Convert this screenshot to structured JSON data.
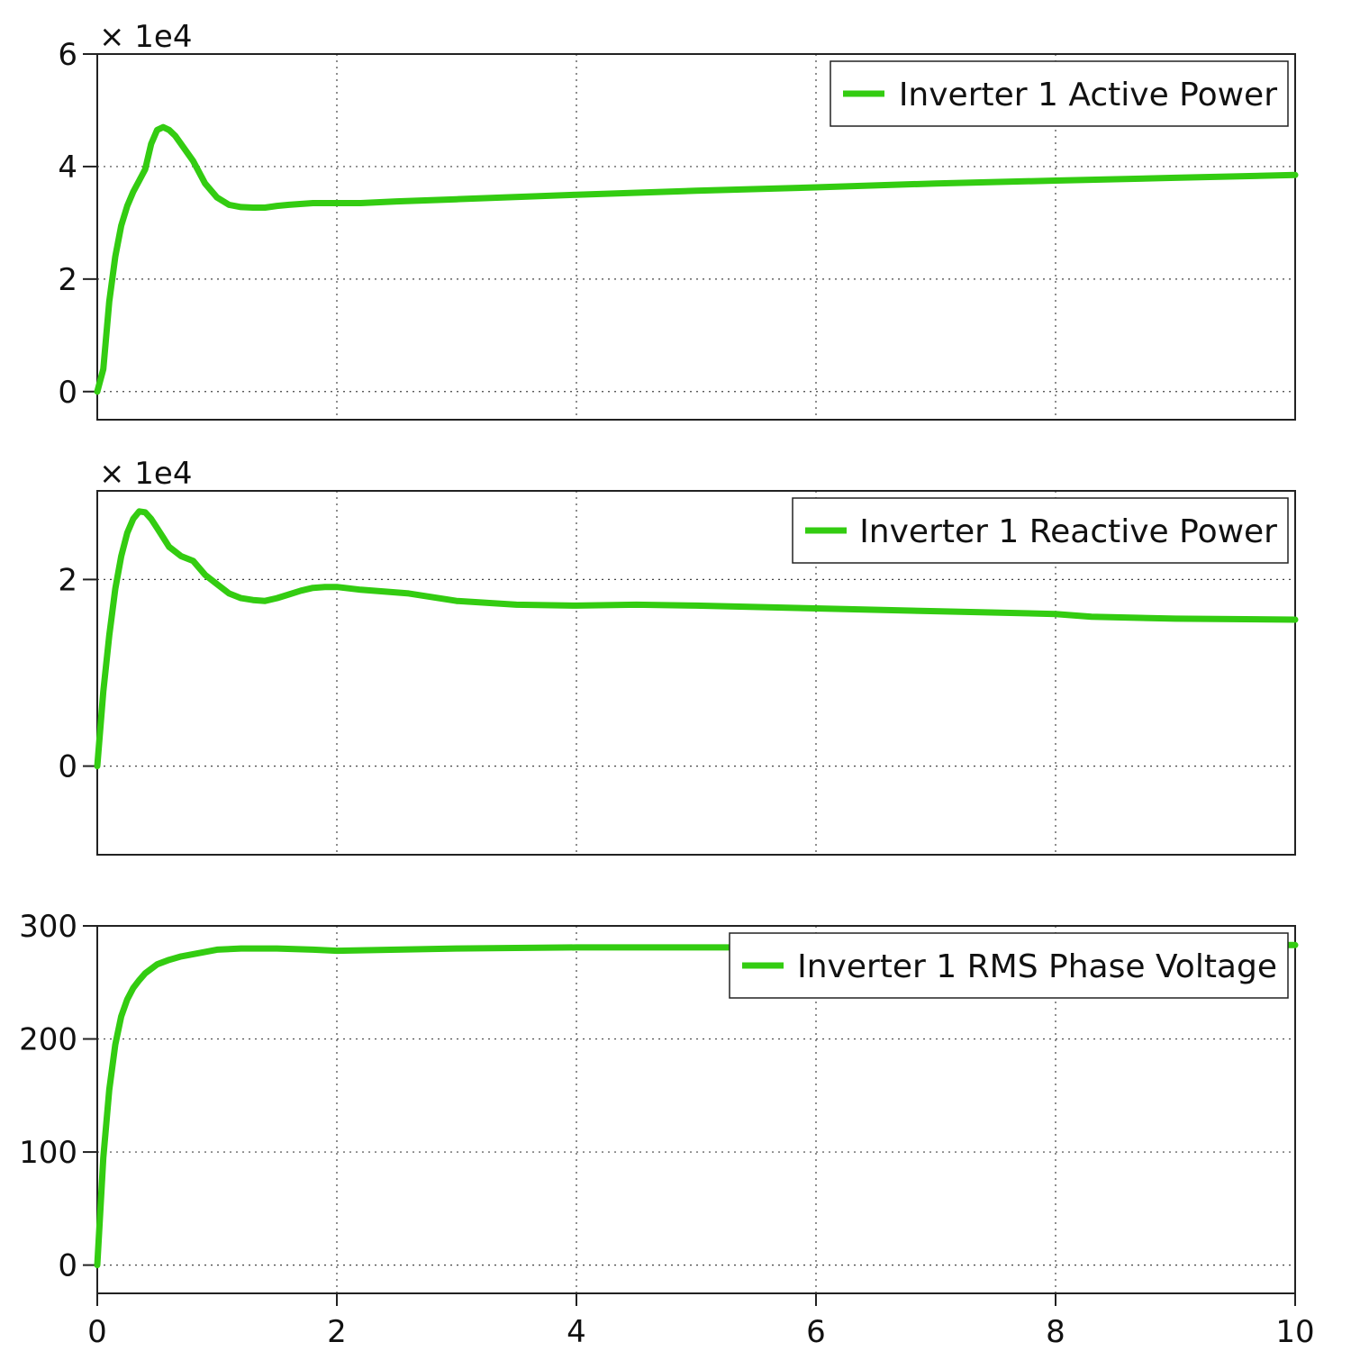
{
  "chart_data": [
    {
      "type": "line",
      "multiplier_label": "× 1e4",
      "ylim": [
        -0.5,
        6
      ],
      "xlim": [
        0,
        10
      ],
      "yticks": [
        0,
        2,
        4,
        6
      ],
      "ytick_labels": [
        "0",
        "2",
        "4",
        "6"
      ],
      "grid": true,
      "legend_position": "top-right",
      "color": "#33cc11",
      "series": [
        {
          "name": "Inverter 1 Active Power",
          "x": [
            0,
            0.05,
            0.1,
            0.15,
            0.2,
            0.25,
            0.3,
            0.35,
            0.4,
            0.45,
            0.5,
            0.55,
            0.6,
            0.65,
            0.7,
            0.8,
            0.9,
            1.0,
            1.1,
            1.2,
            1.3,
            1.4,
            1.5,
            1.6,
            1.8,
            2.0,
            2.2,
            2.5,
            3.0,
            4.0,
            5.0,
            6.0,
            7.0,
            8.0,
            9.0,
            10.0
          ],
          "y": [
            0,
            0.4,
            1.6,
            2.4,
            2.95,
            3.3,
            3.55,
            3.75,
            3.95,
            4.4,
            4.65,
            4.7,
            4.65,
            4.55,
            4.4,
            4.1,
            3.7,
            3.45,
            3.32,
            3.28,
            3.27,
            3.27,
            3.3,
            3.32,
            3.35,
            3.35,
            3.35,
            3.38,
            3.42,
            3.5,
            3.57,
            3.63,
            3.7,
            3.75,
            3.8,
            3.85
          ]
        }
      ]
    },
    {
      "type": "line",
      "multiplier_label": "× 1e4",
      "ylim": [
        -0.95,
        2.95
      ],
      "xlim": [
        0,
        10
      ],
      "yticks": [
        0,
        2
      ],
      "ytick_labels": [
        "0",
        "2"
      ],
      "grid": true,
      "legend_position": "top-right",
      "color": "#33cc11",
      "series": [
        {
          "name": "Inverter 1 Reactive Power",
          "x": [
            0,
            0.05,
            0.1,
            0.15,
            0.2,
            0.25,
            0.3,
            0.35,
            0.4,
            0.45,
            0.5,
            0.55,
            0.6,
            0.7,
            0.8,
            0.9,
            1.0,
            1.1,
            1.2,
            1.3,
            1.4,
            1.5,
            1.6,
            1.7,
            1.8,
            1.9,
            2.0,
            2.2,
            2.6,
            3.0,
            3.5,
            4.0,
            4.5,
            5.0,
            6.0,
            7.0,
            8.0,
            8.3,
            9.0,
            10.0
          ],
          "y": [
            0,
            0.8,
            1.4,
            1.9,
            2.25,
            2.5,
            2.65,
            2.73,
            2.72,
            2.65,
            2.55,
            2.45,
            2.35,
            2.25,
            2.2,
            2.05,
            1.95,
            1.85,
            1.8,
            1.78,
            1.77,
            1.8,
            1.84,
            1.88,
            1.91,
            1.92,
            1.92,
            1.89,
            1.85,
            1.77,
            1.73,
            1.72,
            1.73,
            1.72,
            1.69,
            1.66,
            1.63,
            1.6,
            1.58,
            1.57
          ]
        }
      ]
    },
    {
      "type": "line",
      "ylim": [
        -25,
        300
      ],
      "xlim": [
        0,
        10
      ],
      "yticks": [
        0,
        100,
        200,
        300
      ],
      "ytick_labels": [
        "0",
        "100",
        "200",
        "300"
      ],
      "xticks": [
        0,
        2,
        4,
        6,
        8,
        10
      ],
      "xtick_labels": [
        "0",
        "2",
        "4",
        "6",
        "8",
        "10"
      ],
      "grid": true,
      "legend_position": "top-right",
      "color": "#33cc11",
      "series": [
        {
          "name": "Inverter 1 RMS Phase Voltage",
          "x": [
            0,
            0.05,
            0.1,
            0.15,
            0.2,
            0.25,
            0.3,
            0.35,
            0.4,
            0.5,
            0.6,
            0.7,
            0.8,
            0.9,
            1.0,
            1.2,
            1.5,
            1.8,
            2.0,
            2.5,
            3.0,
            4.0,
            5.0,
            6.0,
            7.0,
            8.0,
            9.0,
            10.0
          ],
          "y": [
            0,
            95,
            155,
            195,
            220,
            235,
            245,
            252,
            258,
            266,
            270,
            273,
            275,
            277,
            279,
            280,
            280,
            279,
            278,
            279,
            280,
            281,
            281,
            281,
            282,
            282,
            283,
            283
          ]
        }
      ]
    }
  ]
}
